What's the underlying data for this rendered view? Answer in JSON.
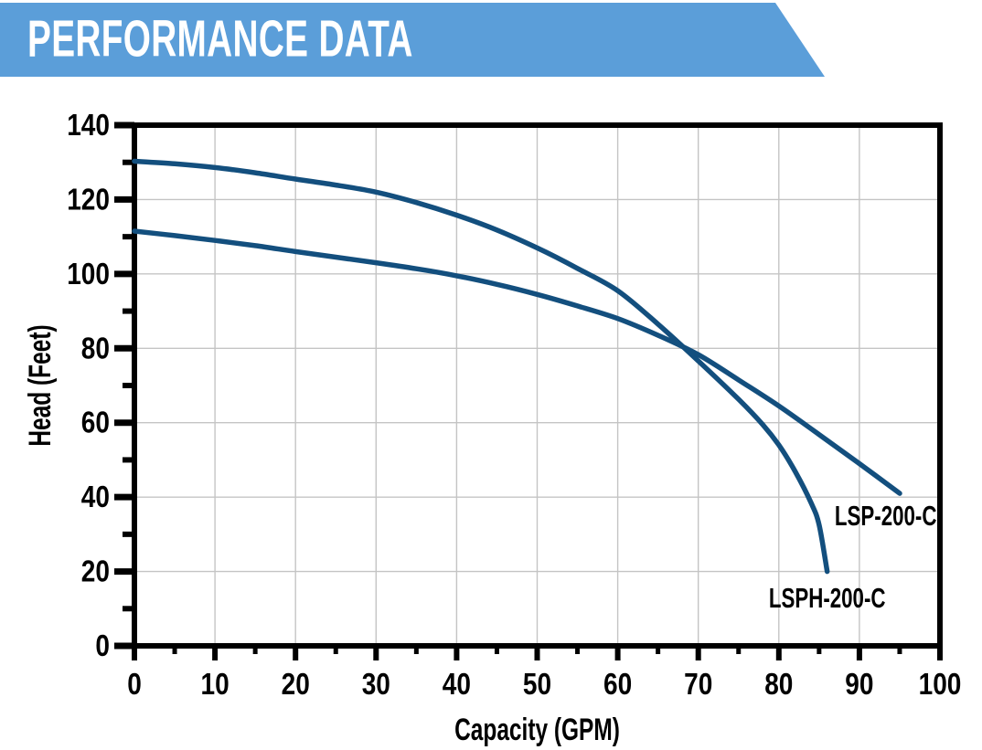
{
  "banner": {
    "title": "PERFORMANCE DATA",
    "bg_color": "#5B9ED9",
    "text_color": "#ffffff"
  },
  "chart_data": {
    "type": "line",
    "title": "",
    "xlabel": "Capacity (GPM)",
    "ylabel": "Head (Feet)",
    "xlim": [
      0,
      100
    ],
    "ylim": [
      0,
      140
    ],
    "x_major_ticks": [
      0,
      10,
      20,
      30,
      40,
      50,
      60,
      70,
      80,
      90,
      100
    ],
    "x_minor_ticks": [
      5,
      15,
      25,
      35,
      45,
      55,
      65,
      75,
      85,
      95
    ],
    "y_major_ticks": [
      0,
      20,
      40,
      60,
      80,
      100,
      120,
      140
    ],
    "y_minor_ticks": [
      10,
      30,
      50,
      70,
      90,
      110,
      130
    ],
    "grid": true,
    "grid_color": "#c4c4c4",
    "axis_color": "#000000",
    "line_color": "#134F7E",
    "legend_position": "inline-labels",
    "series": [
      {
        "name": "LSPH-200-C",
        "label_anchor": "middle",
        "label_x": 86,
        "label_y": 10.3,
        "points": [
          [
            0,
            130.3
          ],
          [
            5,
            129.6
          ],
          [
            10,
            128.6
          ],
          [
            15,
            127.2
          ],
          [
            20,
            125.5
          ],
          [
            25,
            123.9
          ],
          [
            30,
            122.0
          ],
          [
            35,
            119.2
          ],
          [
            40,
            115.8
          ],
          [
            45,
            111.8
          ],
          [
            50,
            107.0
          ],
          [
            55,
            101.5
          ],
          [
            60,
            95.5
          ],
          [
            65,
            86.5
          ],
          [
            70,
            76.6
          ],
          [
            75,
            66.3
          ],
          [
            78,
            59.5
          ],
          [
            80,
            54.0
          ],
          [
            82,
            47.0
          ],
          [
            84,
            38.5
          ],
          [
            85,
            32.5
          ],
          [
            86,
            20.0
          ]
        ]
      },
      {
        "name": "LSP-200-C",
        "label_anchor": "end",
        "label_x": 99.6,
        "label_y": 32.4,
        "points": [
          [
            0,
            111.5
          ],
          [
            5,
            110.3
          ],
          [
            10,
            109.0
          ],
          [
            15,
            107.6
          ],
          [
            20,
            106.0
          ],
          [
            25,
            104.5
          ],
          [
            30,
            103.0
          ],
          [
            35,
            101.4
          ],
          [
            40,
            99.5
          ],
          [
            45,
            97.2
          ],
          [
            50,
            94.5
          ],
          [
            55,
            91.4
          ],
          [
            60,
            88.0
          ],
          [
            65,
            83.5
          ],
          [
            70,
            78.3
          ],
          [
            75,
            71.5
          ],
          [
            80,
            64.5
          ],
          [
            85,
            56.8
          ],
          [
            90,
            49.0
          ],
          [
            95,
            41.0
          ]
        ]
      }
    ]
  }
}
